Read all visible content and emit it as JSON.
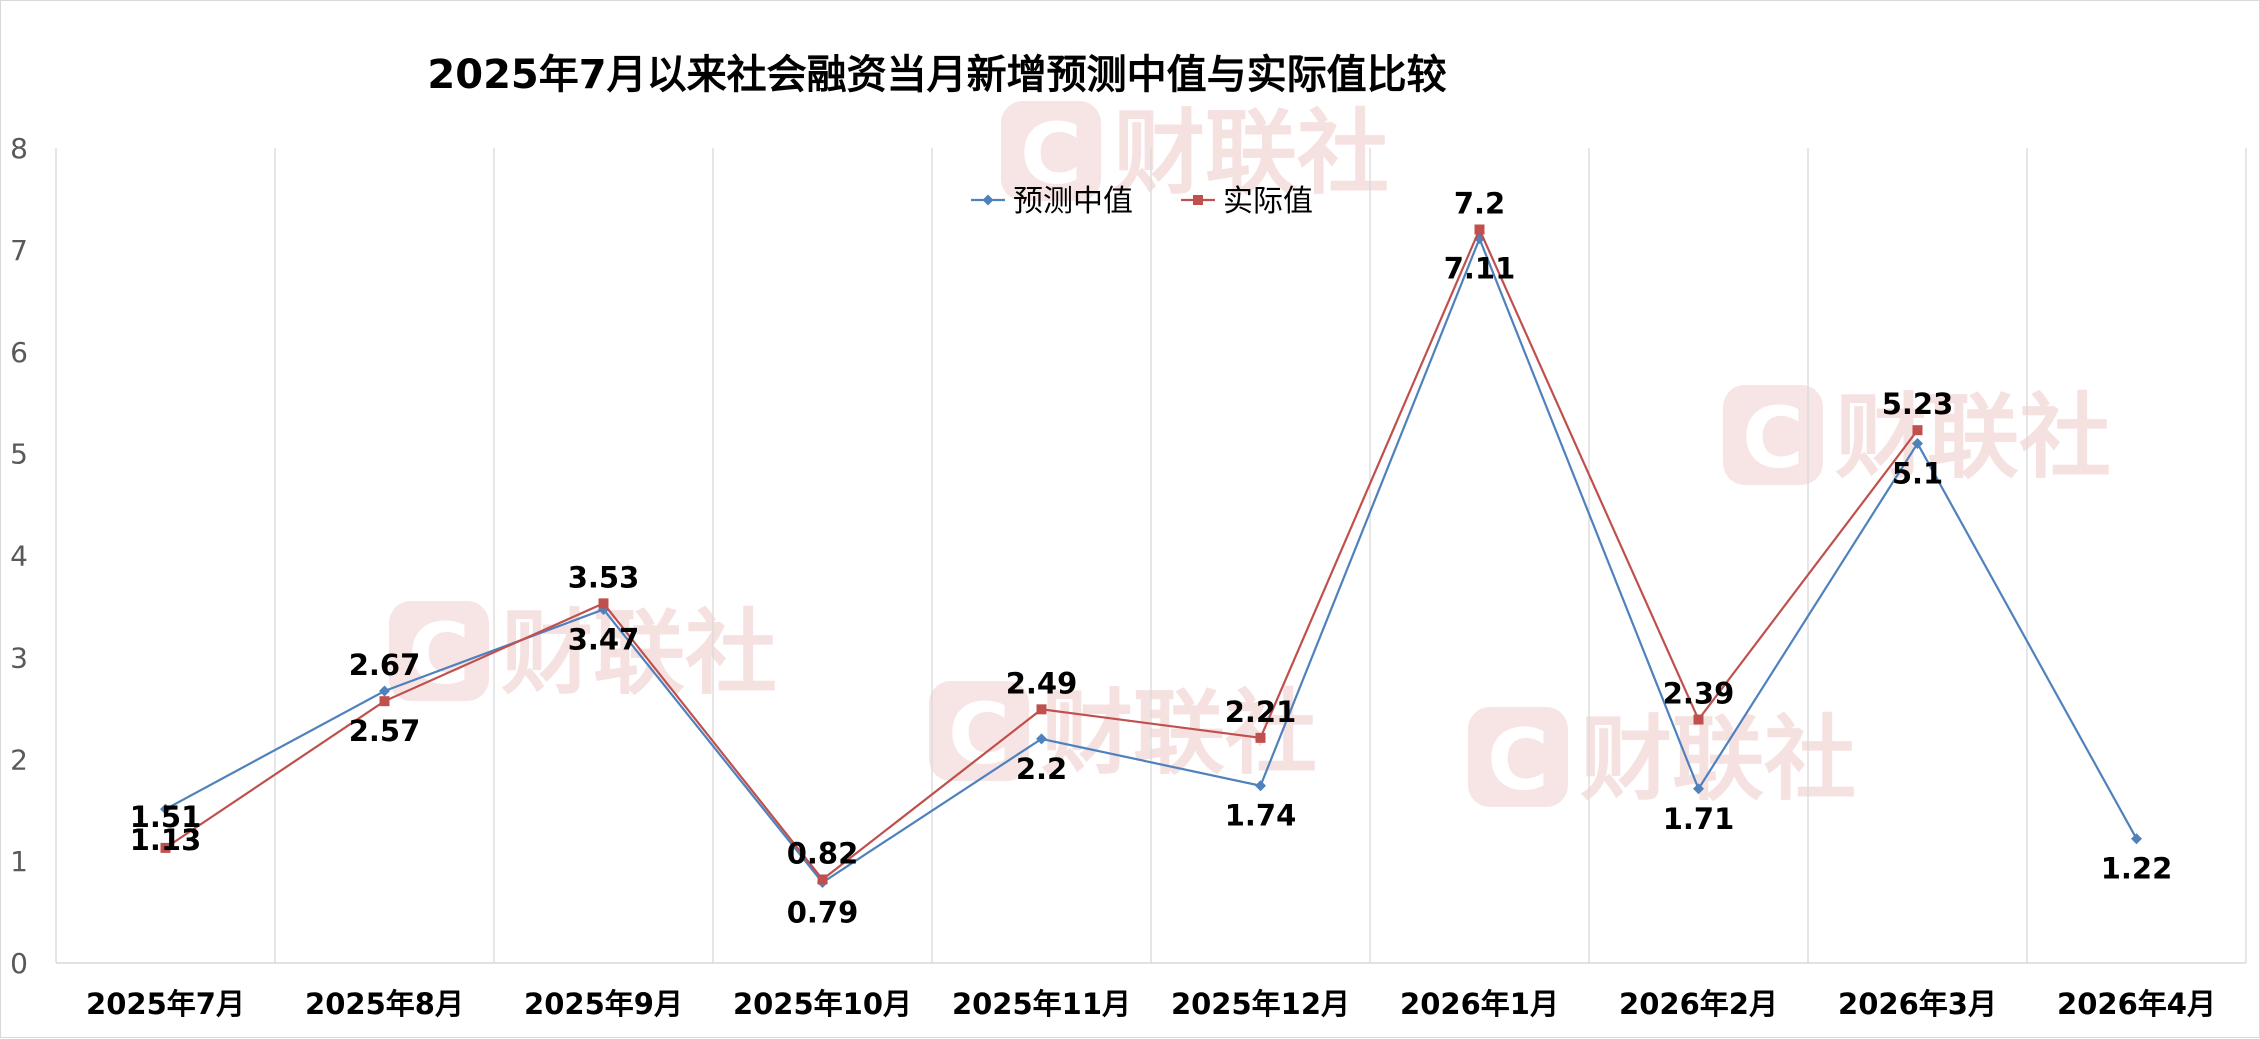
{
  "watermark": {
    "text": "财联社",
    "logo_letter": "C",
    "color": "#f0caca"
  },
  "chart_data": {
    "type": "line",
    "title": "2025年7月以来社会融资当月新增预测中值与实际值比较",
    "xlabel": "",
    "ylabel": "",
    "categories": [
      "2025年7月",
      "2025年8月",
      "2025年9月",
      "2025年10月",
      "2025年11月",
      "2025年12月",
      "2026年1月",
      "2026年2月",
      "2026年3月",
      "2026年4月"
    ],
    "ylim": [
      0,
      8
    ],
    "yticks": [
      "0",
      "1",
      "2",
      "3",
      "4",
      "5",
      "6",
      "7",
      "8"
    ],
    "grid": "vertical",
    "legend_position": "top-center",
    "series": [
      {
        "name": "预测中值",
        "color": "#4f81bd",
        "marker": "diamond",
        "values": [
          1.51,
          2.67,
          3.47,
          0.79,
          2.2,
          1.74,
          7.11,
          1.71,
          5.1,
          1.22
        ],
        "labels": [
          "1.51",
          "2.67",
          "3.47",
          "0.79",
          "2.2",
          "1.74",
          "7.11",
          "1.71",
          "5.1",
          "1.22"
        ]
      },
      {
        "name": "实际值",
        "color": "#c0504d",
        "marker": "square",
        "values": [
          1.13,
          2.57,
          3.53,
          0.82,
          2.49,
          2.21,
          7.2,
          2.39,
          5.23,
          null
        ],
        "labels": [
          "1.13",
          "2.57",
          "3.53",
          "0.82",
          "2.49",
          "2.21",
          "7.2",
          "2.39",
          "5.23",
          ""
        ]
      }
    ]
  }
}
